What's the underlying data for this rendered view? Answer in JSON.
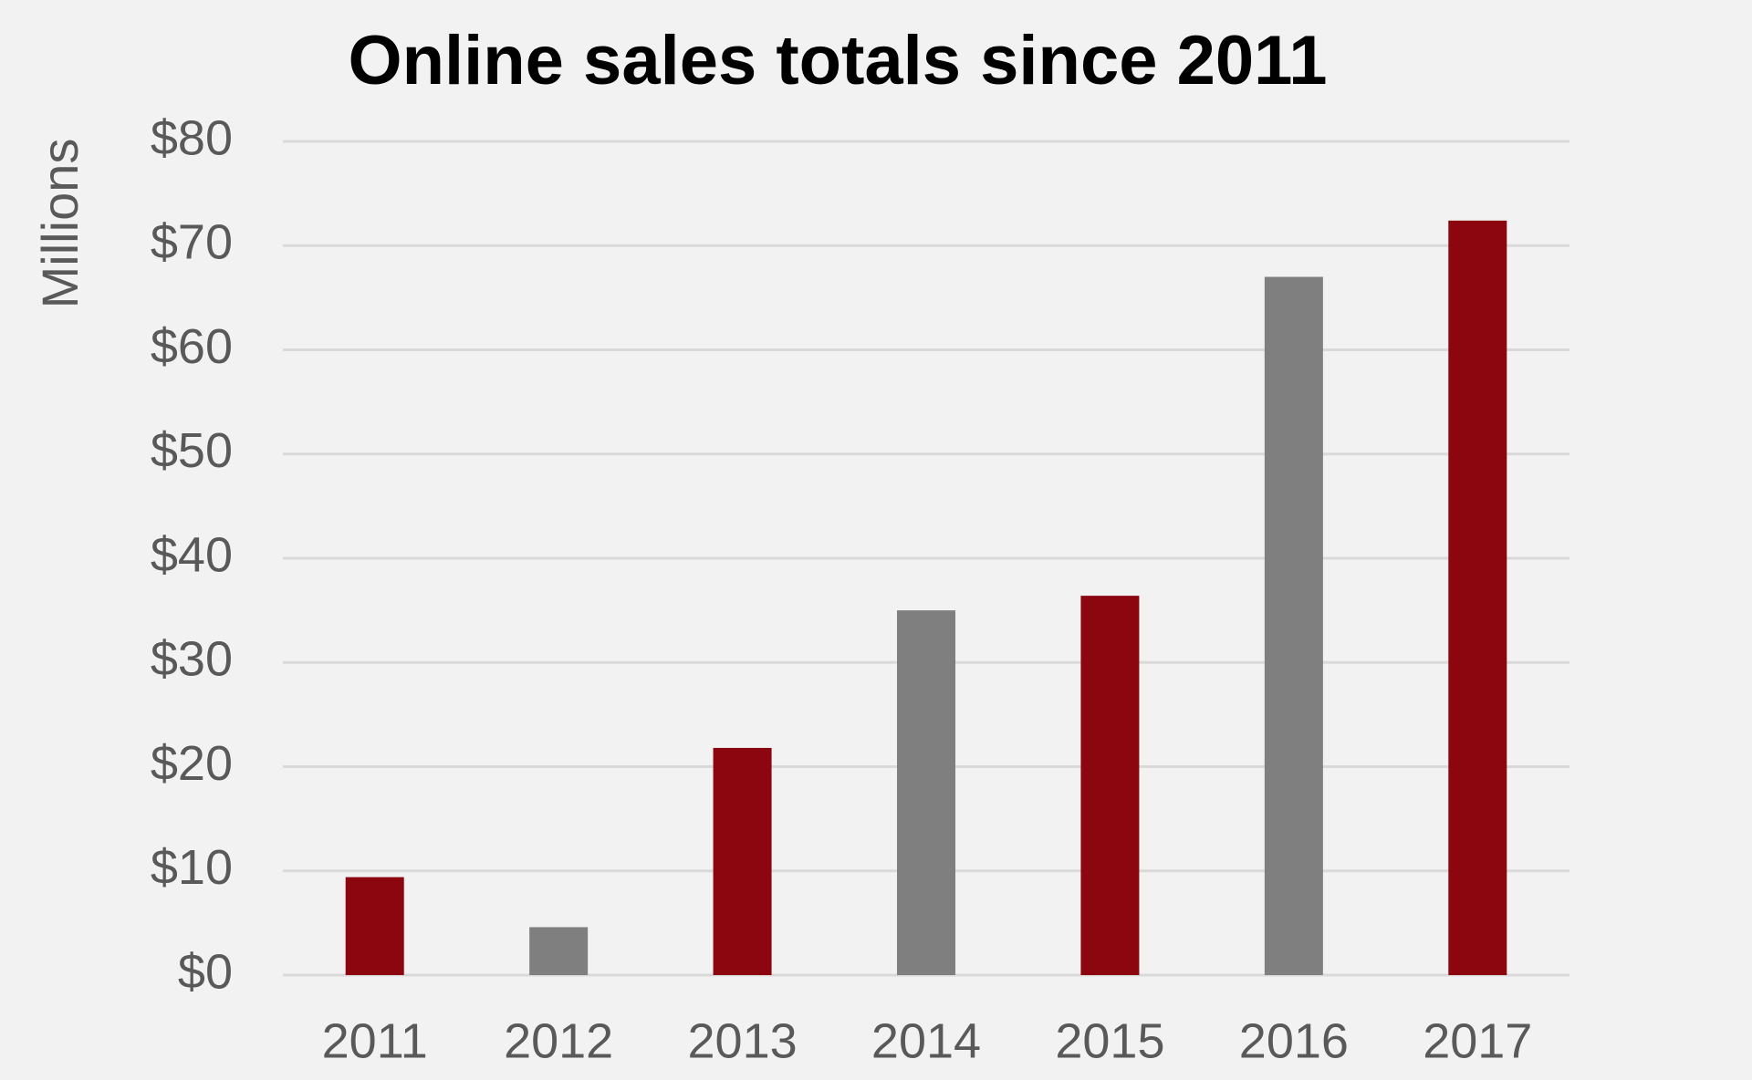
{
  "chart_data": {
    "type": "bar",
    "title": "Online sales totals since 2011",
    "y_label": "Millions",
    "categories": [
      "2011",
      "2012",
      "2013",
      "2014",
      "2015",
      "2016",
      "2017"
    ],
    "values": [
      9.4,
      4.6,
      21.8,
      35,
      36.4,
      67,
      72.4
    ],
    "colors": [
      "#8c0610",
      "#7f7f7f",
      "#8c0610",
      "#7f7f7f",
      "#8c0610",
      "#7f7f7f",
      "#8c0610"
    ],
    "ylim": [
      0,
      80
    ],
    "yticks": [
      {
        "value": 0,
        "label": "$0"
      },
      {
        "value": 10,
        "label": "$10"
      },
      {
        "value": 20,
        "label": "$20"
      },
      {
        "value": 30,
        "label": "$30"
      },
      {
        "value": 40,
        "label": "$40"
      },
      {
        "value": 50,
        "label": "$50"
      },
      {
        "value": 60,
        "label": "$60"
      },
      {
        "value": 70,
        "label": "$70"
      },
      {
        "value": 80,
        "label": "$80"
      }
    ],
    "grid": true
  }
}
